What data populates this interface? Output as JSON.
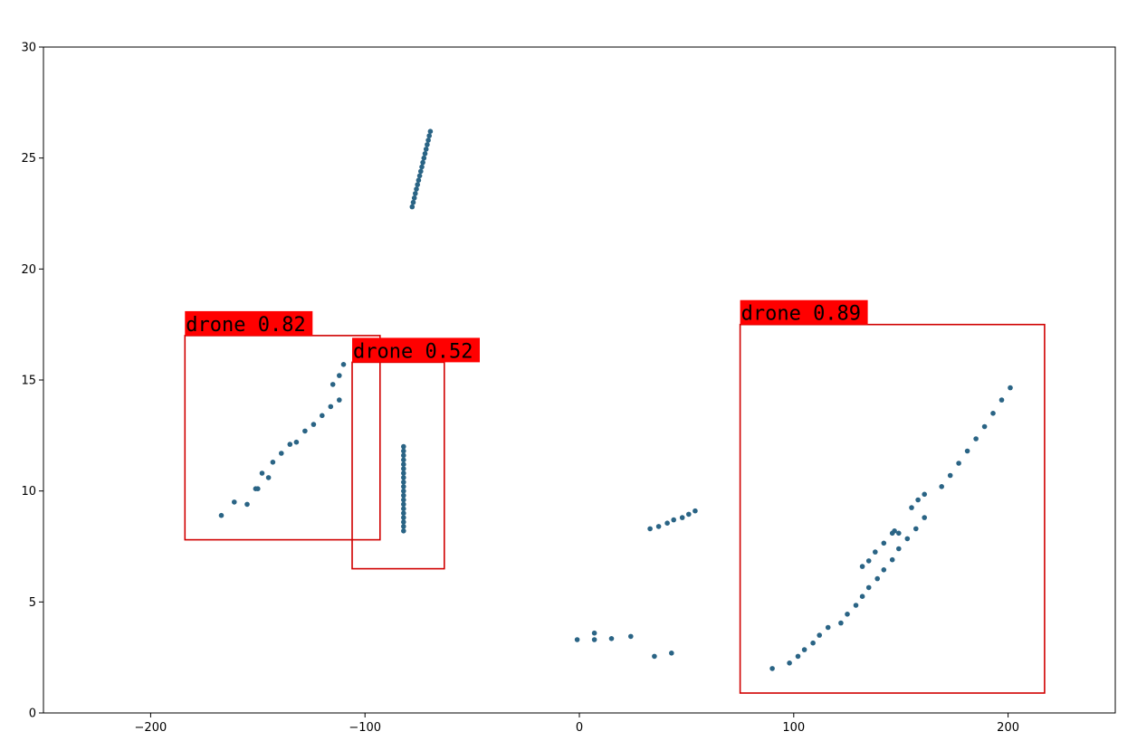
{
  "chart_data": {
    "type": "scatter",
    "xlim": [
      -250,
      250
    ],
    "ylim": [
      0,
      30
    ],
    "x_ticks": [
      -200,
      -100,
      0,
      100,
      200
    ],
    "x_tick_labels": [
      "−200",
      "−100",
      "0",
      "100",
      "200"
    ],
    "y_ticks": [
      0,
      5,
      10,
      15,
      20,
      25,
      30
    ],
    "y_tick_labels": [
      "0",
      "5",
      "10",
      "15",
      "20",
      "25",
      "30"
    ],
    "grid": false,
    "point_color": "#2a6485",
    "points": [
      [
        -78,
        22.8
      ],
      [
        -77.5,
        23.0
      ],
      [
        -77,
        23.2
      ],
      [
        -76.5,
        23.4
      ],
      [
        -76,
        23.6
      ],
      [
        -75.5,
        23.8
      ],
      [
        -75,
        24.0
      ],
      [
        -74.5,
        24.2
      ],
      [
        -74,
        24.4
      ],
      [
        -73.5,
        24.6
      ],
      [
        -73,
        24.8
      ],
      [
        -72.5,
        25.0
      ],
      [
        -72,
        25.2
      ],
      [
        -71.5,
        25.4
      ],
      [
        -71,
        25.6
      ],
      [
        -70.5,
        25.8
      ],
      [
        -70,
        26.0
      ],
      [
        -69.5,
        26.2
      ],
      [
        -167,
        8.9
      ],
      [
        -161,
        9.5
      ],
      [
        -155,
        9.4
      ],
      [
        -151,
        10.1
      ],
      [
        -150,
        10.1
      ],
      [
        -148,
        10.8
      ],
      [
        -145,
        10.6
      ],
      [
        -143,
        11.3
      ],
      [
        -139,
        11.7
      ],
      [
        -135,
        12.1
      ],
      [
        -132,
        12.2
      ],
      [
        -128,
        12.7
      ],
      [
        -124,
        13.0
      ],
      [
        -120,
        13.4
      ],
      [
        -116,
        13.8
      ],
      [
        -112,
        14.1
      ],
      [
        -115,
        14.8
      ],
      [
        -112,
        15.2
      ],
      [
        -110,
        15.7
      ],
      [
        -82,
        8.2
      ],
      [
        -82,
        8.4
      ],
      [
        -82,
        8.6
      ],
      [
        -82,
        8.8
      ],
      [
        -82,
        9.0
      ],
      [
        -82,
        9.2
      ],
      [
        -82,
        9.4
      ],
      [
        -82,
        9.6
      ],
      [
        -82,
        9.8
      ],
      [
        -82,
        10.0
      ],
      [
        -82,
        10.2
      ],
      [
        -82,
        10.4
      ],
      [
        -82,
        10.6
      ],
      [
        -82,
        10.8
      ],
      [
        -82,
        11.0
      ],
      [
        -82,
        11.2
      ],
      [
        -82,
        11.4
      ],
      [
        -82,
        11.6
      ],
      [
        -82,
        11.8
      ],
      [
        -82,
        12.0
      ],
      [
        33,
        8.3
      ],
      [
        37,
        8.4
      ],
      [
        41,
        8.55
      ],
      [
        44,
        8.7
      ],
      [
        48,
        8.8
      ],
      [
        51,
        8.95
      ],
      [
        54,
        9.1
      ],
      [
        -1,
        3.3
      ],
      [
        7,
        3.3
      ],
      [
        7,
        3.6
      ],
      [
        15,
        3.35
      ],
      [
        24,
        3.45
      ],
      [
        35,
        2.55
      ],
      [
        43,
        2.7
      ],
      [
        90,
        2.0
      ],
      [
        98,
        2.25
      ],
      [
        102,
        2.55
      ],
      [
        105,
        2.85
      ],
      [
        109,
        3.15
      ],
      [
        112,
        3.5
      ],
      [
        116,
        3.85
      ],
      [
        122,
        4.05
      ],
      [
        125,
        4.45
      ],
      [
        129,
        4.85
      ],
      [
        132,
        5.25
      ],
      [
        135,
        5.65
      ],
      [
        139,
        6.05
      ],
      [
        142,
        6.45
      ],
      [
        146,
        6.9
      ],
      [
        149,
        7.4
      ],
      [
        153,
        7.85
      ],
      [
        157,
        8.3
      ],
      [
        161,
        8.8
      ],
      [
        155,
        9.25
      ],
      [
        158,
        9.6
      ],
      [
        161,
        9.85
      ],
      [
        132,
        6.6
      ],
      [
        135,
        6.85
      ],
      [
        138,
        7.25
      ],
      [
        142,
        7.65
      ],
      [
        146,
        8.1
      ],
      [
        147,
        8.2
      ],
      [
        149,
        8.1
      ],
      [
        169,
        10.2
      ],
      [
        173,
        10.7
      ],
      [
        177,
        11.25
      ],
      [
        181,
        11.8
      ],
      [
        185,
        12.35
      ],
      [
        189,
        12.9
      ],
      [
        193,
        13.5
      ],
      [
        197,
        14.1
      ],
      [
        201,
        14.65
      ]
    ],
    "detections": [
      {
        "label": "drone 0.82",
        "x0": -184,
        "y0": 7.8,
        "x1": -93,
        "y1": 17.0
      },
      {
        "label": "drone 0.52",
        "x0": -106,
        "y0": 6.5,
        "x1": -63,
        "y1": 15.8
      },
      {
        "label": "drone 0.89",
        "x0": 75,
        "y0": 0.9,
        "x1": 217,
        "y1": 17.5
      }
    ],
    "detection_color": "#d00000",
    "detection_label_bg": "#ff0000"
  }
}
